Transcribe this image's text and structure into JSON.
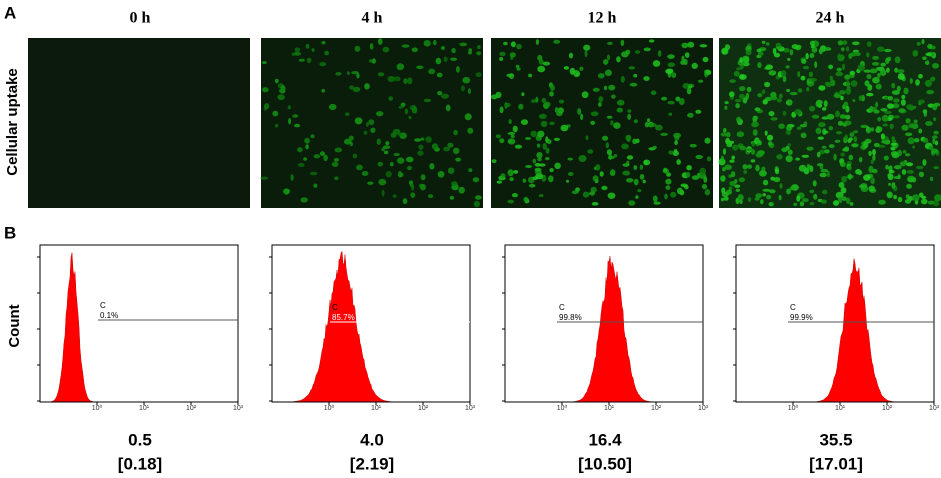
{
  "panel_a": {
    "label": "A",
    "y_label": "Cellular uptake",
    "times": [
      "0 h",
      "4 h",
      "12 h",
      "24 h"
    ]
  },
  "panel_b": {
    "label": "B",
    "y_label": "Count",
    "gate": "C",
    "x_ticks": [
      "10⁰",
      "10¹",
      "10²",
      "10³"
    ],
    "histograms": [
      {
        "gate_percent": "0.1%",
        "mean": "0.5",
        "sd": "[0.18]"
      },
      {
        "gate_percent": "85.7%",
        "mean": "4.0",
        "sd": "[2.19]"
      },
      {
        "gate_percent": "99.8%",
        "mean": "16.4",
        "sd": "[10.50]"
      },
      {
        "gate_percent": "99.9%",
        "mean": "35.5",
        "sd": "[17.01]"
      }
    ]
  }
}
